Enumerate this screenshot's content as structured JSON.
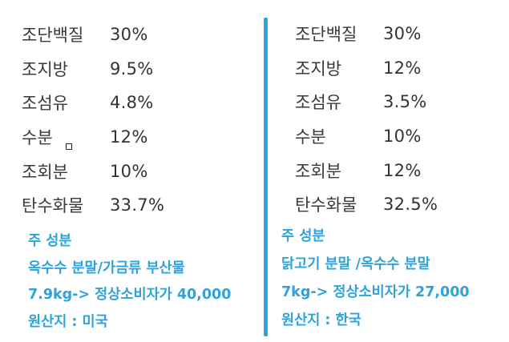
{
  "left": {
    "nutrients": [
      {
        "name": "조단백질",
        "value": "30%"
      },
      {
        "name": "조지방",
        "value": "9.5%"
      },
      {
        "name": "조섬유",
        "value": "4.8%"
      },
      {
        "name": "수분",
        "value": "12%"
      },
      {
        "name": "조회분",
        "value": "10%"
      },
      {
        "name": "탄수화물",
        "value": "33.7%"
      }
    ],
    "info": [
      "주 성분",
      "옥수수 분말/가금류 부산물",
      "7.9kg-> 정상소비자가 40,000",
      "원산지 : 미국"
    ]
  },
  "right": {
    "nutrients": [
      {
        "name": "조단백질",
        "value": "30%"
      },
      {
        "name": "조지방",
        "value": "12%"
      },
      {
        "name": "조섬유",
        "value": "3.5%"
      },
      {
        "name": "수분",
        "value": "10%"
      },
      {
        "name": "조회분",
        "value": "12%"
      },
      {
        "name": "탄수화물",
        "value": "32.5%"
      }
    ],
    "info": [
      "주 성분",
      "닭고기 분말 /옥수수 분말",
      "7kg-> 정상소비자가 27,000",
      "원산지 : 한국"
    ]
  },
  "colors": {
    "accent": "#2da3dd",
    "text": "#333333"
  }
}
